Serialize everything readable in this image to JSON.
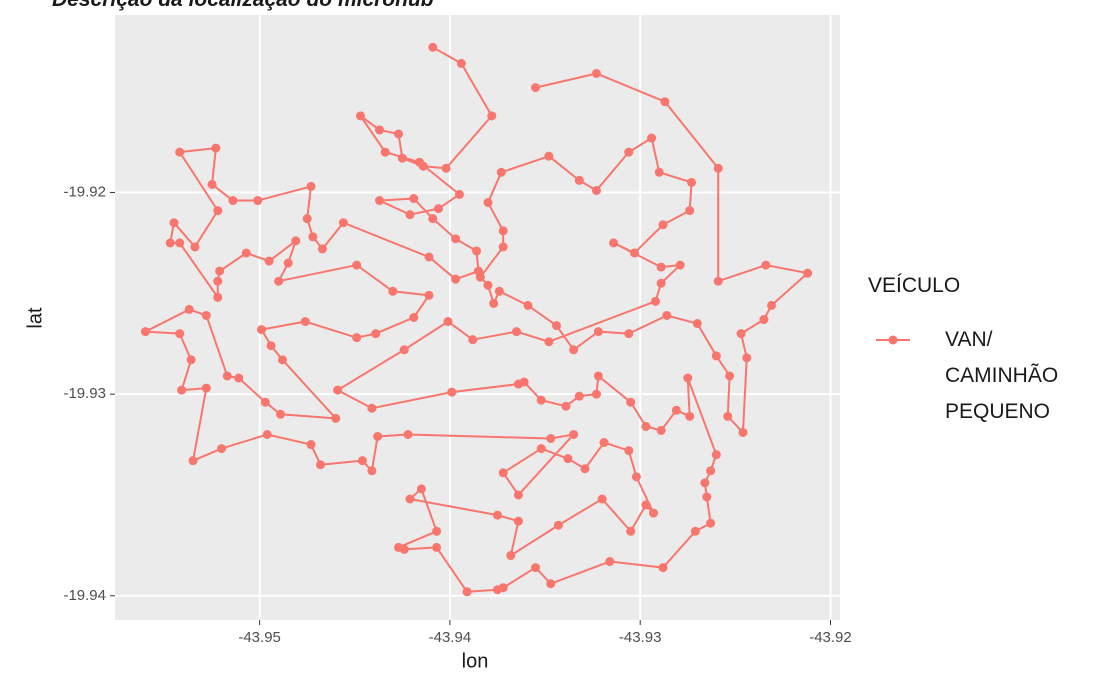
{
  "chart_data": {
    "type": "line",
    "title": "Descrição da localização do microhub",
    "x_label": "lon",
    "y_label": "lat",
    "legend_title": "VEÍCULO",
    "x": [
      -43.9355,
      -43.9323,
      -43.9287,
      -43.9259,
      -43.9259,
      -43.9234,
      -43.9212,
      -43.9231,
      -43.9235,
      -43.9247,
      -43.9244,
      -43.9246,
      -43.9254,
      -43.9253,
      -43.926,
      -43.927,
      -43.9286,
      -43.9306,
      -43.9322,
      -43.9335,
      -43.9344,
      -43.9359,
      -43.9374,
      -43.9377,
      -43.938,
      -43.9384,
      -43.9372,
      -43.9372,
      -43.938,
      -43.9373,
      -43.9348,
      -43.9332,
      -43.9323,
      -43.9306,
      -43.9294,
      -43.929,
      -43.9273,
      -43.9274,
      -43.9288,
      -43.9303,
      -43.9314,
      -43.9289,
      -43.9279,
      -43.9289,
      -43.9292,
      -43.9348,
      -43.9365,
      -43.9388,
      -43.9401,
      -43.9424,
      -43.9459,
      -43.9441,
      -43.9399,
      -43.9364,
      -43.9361,
      -43.9352,
      -43.9339,
      -43.9332,
      -43.9323,
      -43.9322,
      -43.9305,
      -43.9297,
      -43.9289,
      -43.9281,
      -43.9274,
      -43.9275,
      -43.926,
      -43.9263,
      -43.9266,
      -43.9265,
      -43.9263,
      -43.9271,
      -43.9288,
      -43.9316,
      -43.9347,
      -43.9355,
      -43.9372,
      -43.9375,
      -43.9391,
      -43.9407,
      -43.9424,
      -43.9427,
      -43.9407,
      -43.9415,
      -43.9421,
      -43.9375,
      -43.9364,
      -43.9368,
      -43.9343,
      -43.932,
      -43.9305,
      -43.9297,
      -43.9293,
      -43.9302,
      -43.9306,
      -43.9319,
      -43.9329,
      -43.9338,
      -43.9352,
      -43.9372,
      -43.9364,
      -43.9335,
      -43.9347,
      -43.9422,
      -43.9438,
      -43.9441,
      -43.9446,
      -43.9468,
      -43.9473,
      -43.9496,
      -43.952,
      -43.9535,
      -43.9528,
      -43.9541,
      -43.9536,
      -43.9542,
      -43.956,
      -43.9537,
      -43.9528,
      -43.9517,
      -43.9511,
      -43.9497,
      -43.9489,
      -43.946,
      -43.9488,
      -43.9494,
      -43.9499,
      -43.9476,
      -43.9449,
      -43.9439,
      -43.9419,
      -43.9411,
      -43.943,
      -43.9449,
      -43.949,
      -43.9485,
      -43.9481,
      -43.9495,
      -43.9507,
      -43.9521,
      -43.9522,
      -43.9522,
      -43.9542,
      -43.9547,
      -43.9545,
      -43.9534,
      -43.9522,
      -43.9542,
      -43.9523,
      -43.9525,
      -43.9514,
      -43.9501,
      -43.9473,
      -43.9475,
      -43.9472,
      -43.9467,
      -43.9456,
      -43.9411,
      -43.9397,
      -43.9385,
      -43.9386,
      -43.9397,
      -43.9409,
      -43.9419,
      -43.9437,
      -43.9421,
      -43.9406,
      -43.9395,
      -43.9416,
      -43.9434,
      -43.9447,
      -43.9437,
      -43.9427,
      -43.9425,
      -43.9414,
      -43.9402,
      -43.9378,
      -43.9394,
      -43.9409
    ],
    "series": [
      {
        "name": "VAN/ CAMINHÃO PEQUENO",
        "color": "#f8766d",
        "values": [
          -19.9148,
          -19.9141,
          -19.9155,
          -19.9188,
          -19.9244,
          -19.9236,
          -19.924,
          -19.9256,
          -19.9263,
          -19.927,
          -19.9282,
          -19.9319,
          -19.9311,
          -19.9291,
          -19.9281,
          -19.9265,
          -19.9261,
          -19.927,
          -19.9269,
          -19.9278,
          -19.9266,
          -19.9256,
          -19.9249,
          -19.9255,
          -19.9246,
          -19.9242,
          -19.9227,
          -19.9219,
          -19.9205,
          -19.919,
          -19.9182,
          -19.9194,
          -19.9199,
          -19.918,
          -19.9173,
          -19.919,
          -19.9195,
          -19.9209,
          -19.9216,
          -19.923,
          -19.9225,
          -19.9237,
          -19.9236,
          -19.9245,
          -19.9254,
          -19.9274,
          -19.9269,
          -19.9273,
          -19.9264,
          -19.9278,
          -19.9298,
          -19.9307,
          -19.9299,
          -19.9295,
          -19.9294,
          -19.9303,
          -19.9306,
          -19.9301,
          -19.93,
          -19.9291,
          -19.9304,
          -19.9316,
          -19.9318,
          -19.9308,
          -19.9311,
          -19.9292,
          -19.933,
          -19.9338,
          -19.9344,
          -19.9351,
          -19.9364,
          -19.9368,
          -19.9386,
          -19.9383,
          -19.9394,
          -19.9386,
          -19.9396,
          -19.9397,
          -19.9398,
          -19.9376,
          -19.9377,
          -19.9376,
          -19.9368,
          -19.9347,
          -19.9352,
          -19.936,
          -19.9363,
          -19.938,
          -19.9365,
          -19.9352,
          -19.9368,
          -19.9355,
          -19.9359,
          -19.9341,
          -19.9328,
          -19.9324,
          -19.9337,
          -19.9332,
          -19.9327,
          -19.9339,
          -19.935,
          -19.932,
          -19.9322,
          -19.932,
          -19.9321,
          -19.9338,
          -19.9333,
          -19.9335,
          -19.9325,
          -19.932,
          -19.9327,
          -19.9333,
          -19.9297,
          -19.9298,
          -19.9283,
          -19.927,
          -19.9269,
          -19.9258,
          -19.9261,
          -19.9291,
          -19.9292,
          -19.9304,
          -19.931,
          -19.9312,
          -19.9283,
          -19.9276,
          -19.9268,
          -19.9264,
          -19.9272,
          -19.927,
          -19.9262,
          -19.9251,
          -19.9249,
          -19.9236,
          -19.9244,
          -19.9235,
          -19.9224,
          -19.9234,
          -19.923,
          -19.9239,
          -19.9244,
          -19.9252,
          -19.9225,
          -19.9225,
          -19.9215,
          -19.9227,
          -19.9209,
          -19.918,
          -19.9178,
          -19.9196,
          -19.9204,
          -19.9204,
          -19.9197,
          -19.9213,
          -19.9222,
          -19.9228,
          -19.9215,
          -19.9232,
          -19.9243,
          -19.9239,
          -19.9229,
          -19.9223,
          -19.9213,
          -19.9203,
          -19.9204,
          -19.9211,
          -19.9208,
          -19.9201,
          -19.9185,
          -19.918,
          -19.9162,
          -19.9169,
          -19.9171,
          -19.9183,
          -19.9187,
          -19.9188,
          -19.9162,
          -19.9136,
          -19.9128
        ]
      }
    ],
    "xlim": [
      -43.9576,
      -43.9195
    ],
    "ylim": [
      -19.9412,
      -19.9112
    ],
    "xticks": [
      -43.95,
      -43.94,
      -43.93,
      -43.92
    ],
    "yticks": [
      -19.92,
      -19.93,
      -19.94
    ],
    "grid": true,
    "panel_color": "#ebebeb",
    "legend": "right"
  }
}
